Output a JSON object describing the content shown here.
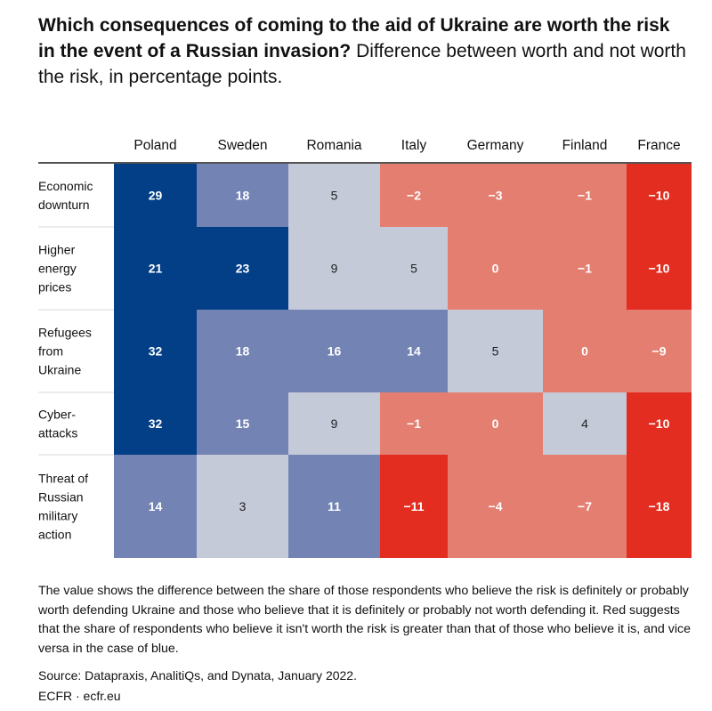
{
  "header": {
    "title_bold": "Which consequences of coming to the aid of Ukraine are worth the risk in the event of a Russian invasion?",
    "title_rest": "Difference between worth and not worth the risk, in percentage points."
  },
  "chart_data": {
    "type": "heatmap",
    "columns": [
      "Poland",
      "Sweden",
      "Romania",
      "Italy",
      "Germany",
      "Finland",
      "France"
    ],
    "rows": [
      {
        "label": [
          "Economic",
          "downturn"
        ],
        "values": [
          29,
          18,
          5,
          -2,
          -3,
          -1,
          -10
        ]
      },
      {
        "label": [
          "Higher",
          "energy",
          "prices"
        ],
        "values": [
          21,
          23,
          9,
          5,
          0,
          -1,
          -10
        ]
      },
      {
        "label": [
          "Refugees",
          "from",
          "Ukraine"
        ],
        "values": [
          32,
          18,
          16,
          14,
          5,
          0,
          -9
        ]
      },
      {
        "label": [
          "Cyber-",
          "attacks"
        ],
        "values": [
          32,
          15,
          9,
          -1,
          0,
          4,
          -10
        ]
      },
      {
        "label": [
          "Threat of",
          "Russian",
          "military",
          "action"
        ],
        "values": [
          14,
          3,
          11,
          -11,
          -4,
          -7,
          -18
        ]
      }
    ],
    "colors": {
      "dark_blue": "#023F87",
      "mid_blue": "#7384B4",
      "light_blue": "#C5CAD9",
      "light_red": "#E47E70",
      "bright_red": "#E32D21",
      "text_dark": "#222222",
      "text_light": "#ffffff"
    }
  },
  "footer": {
    "note": "The value shows the difference between the share of those respondents who believe the risk is definitely or probably worth defending Ukraine and those who believe that it is definitely or probably not worth defending it. Red suggests that the share of respondents who believe it isn't worth the risk is greater than that of those who believe it is, and vice versa in the case of blue.",
    "source": "Source: Datapraxis, AnalitiQs, and Dynata, January 2022.",
    "credit": "ECFR · ecfr.eu"
  }
}
